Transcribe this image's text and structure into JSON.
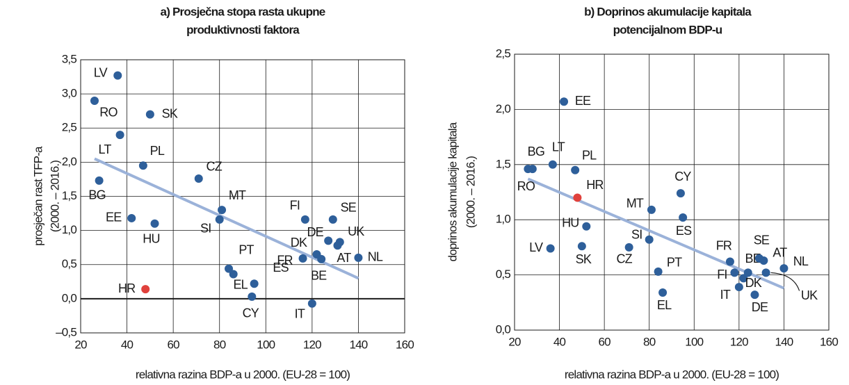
{
  "chart_data": [
    {
      "type": "scatter",
      "title": [
        "a) Prosječna stopa rasta ukupne",
        "produktivnosti faktora"
      ],
      "y_label": [
        "prosječan rast TFP-a",
        "(2000. – 2016.)"
      ],
      "x_label": "relativna razina BDP-a u 2000. (EU-28 = 100)",
      "xlim": [
        20,
        160
      ],
      "xticks": [
        20,
        40,
        60,
        80,
        100,
        120,
        140,
        160
      ],
      "ylim": [
        -0.5,
        3.5
      ],
      "yticks": [
        {
          "value": -0.5,
          "label": "–0,5"
        },
        {
          "value": 0,
          "label": "0,0"
        },
        {
          "value": 0.5,
          "label": "0,5"
        },
        {
          "value": 1,
          "label": "1,0"
        },
        {
          "value": 1.5,
          "label": "1,5"
        },
        {
          "value": 2,
          "label": "2,0"
        },
        {
          "value": 2.5,
          "label": "2,5"
        },
        {
          "value": 3,
          "label": "3,0"
        },
        {
          "value": 3.5,
          "label": "3,5"
        }
      ],
      "grid": true,
      "hline": 0,
      "labels": [
        "LV",
        "RO",
        "SK",
        "LT",
        "PL",
        "BG",
        "CZ",
        "MT",
        "SI",
        "EE",
        "HU",
        "FI",
        "SE",
        "DE",
        "UK",
        "AT",
        "DK",
        "BE",
        "FR",
        "NL",
        "PT",
        "EL",
        "ES",
        "CY",
        "IT",
        "HR"
      ],
      "x": [
        36,
        26,
        50,
        37,
        47,
        28,
        71,
        81,
        80,
        42,
        52,
        117,
        129,
        127,
        132,
        131,
        122,
        124,
        116,
        140,
        84,
        86,
        95,
        94,
        120,
        48
      ],
      "values": [
        3.27,
        2.9,
        2.7,
        2.4,
        1.95,
        1.73,
        1.76,
        1.3,
        1.16,
        1.18,
        1.1,
        1.16,
        1.16,
        0.85,
        0.83,
        0.78,
        0.65,
        0.58,
        0.59,
        0.6,
        0.44,
        0.36,
        0.22,
        0.03,
        -0.07,
        0.14
      ],
      "colors": [
        "#2e5f9a",
        "#2e5f9a",
        "#2e5f9a",
        "#2e5f9a",
        "#2e5f9a",
        "#2e5f9a",
        "#2e5f9a",
        "#2e5f9a",
        "#2e5f9a",
        "#2e5f9a",
        "#2e5f9a",
        "#2e5f9a",
        "#2e5f9a",
        "#2e5f9a",
        "#2e5f9a",
        "#2e5f9a",
        "#2e5f9a",
        "#2e5f9a",
        "#2e5f9a",
        "#2e5f9a",
        "#2e5f9a",
        "#2e5f9a",
        "#2e5f9a",
        "#2e5f9a",
        "#2e5f9a",
        "#e0413c"
      ],
      "trend": {
        "x": [
          26,
          140
        ],
        "values": [
          2.05,
          0.3
        ],
        "color": "#9bb2d9"
      }
    },
    {
      "type": "scatter",
      "title": [
        "b) Doprinos akumulacije kapitala",
        "potencijalnom BDP-u"
      ],
      "y_label": [
        "doprinos akumulacije kapitala",
        "(2000. – 2016.)"
      ],
      "x_label": "relativna razina BDP-a u 2000. (EU-28 = 100)",
      "xlim": [
        20,
        160
      ],
      "xticks": [
        20,
        40,
        60,
        80,
        100,
        120,
        140,
        160
      ],
      "ylim": [
        0,
        2.5
      ],
      "yticks": [
        {
          "value": 0,
          "label": "0,0"
        },
        {
          "value": 0.5,
          "label": "0,5"
        },
        {
          "value": 1,
          "label": "1,0"
        },
        {
          "value": 1.5,
          "label": "1,5"
        },
        {
          "value": 2,
          "label": "2,0"
        },
        {
          "value": 2.5,
          "label": "2,5"
        }
      ],
      "grid": true,
      "labels": [
        "EE",
        "BG",
        "RO",
        "LT",
        "PL",
        "HR",
        "CY",
        "MT",
        "ES",
        "HU",
        "SI",
        "LV",
        "SK",
        "CZ",
        "PT",
        "EL",
        "FR",
        "BE",
        "SE",
        "AT",
        "NL",
        "FI",
        "IT",
        "DK",
        "DE",
        "UK"
      ],
      "x": [
        42,
        28,
        26,
        37,
        47,
        48,
        94,
        81,
        95,
        52,
        80,
        36,
        50,
        71,
        84,
        86,
        116,
        124,
        129,
        131,
        140,
        118,
        120,
        122,
        127,
        132
      ],
      "values": [
        2.07,
        1.46,
        1.46,
        1.5,
        1.45,
        1.2,
        1.24,
        1.09,
        1.02,
        0.94,
        0.82,
        0.74,
        0.76,
        0.75,
        0.53,
        0.34,
        0.62,
        0.52,
        0.65,
        0.63,
        0.56,
        0.52,
        0.39,
        0.47,
        0.32,
        0.52
      ],
      "colors": [
        "#2e5f9a",
        "#2e5f9a",
        "#2e5f9a",
        "#2e5f9a",
        "#2e5f9a",
        "#e0413c",
        "#2e5f9a",
        "#2e5f9a",
        "#2e5f9a",
        "#2e5f9a",
        "#2e5f9a",
        "#2e5f9a",
        "#2e5f9a",
        "#2e5f9a",
        "#2e5f9a",
        "#2e5f9a",
        "#2e5f9a",
        "#2e5f9a",
        "#2e5f9a",
        "#2e5f9a",
        "#2e5f9a",
        "#2e5f9a",
        "#2e5f9a",
        "#2e5f9a",
        "#2e5f9a",
        "#2e5f9a"
      ],
      "trend": {
        "x": [
          26,
          140
        ],
        "values": [
          1.37,
          0.38
        ],
        "color": "#9bb2d9"
      }
    }
  ]
}
